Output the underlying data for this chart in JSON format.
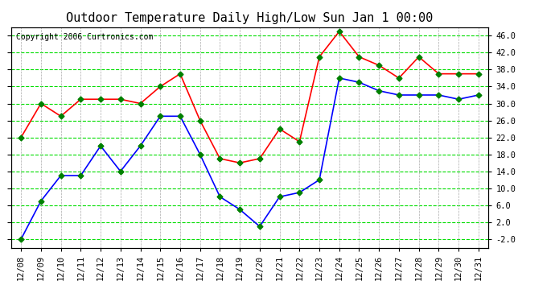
{
  "title": "Outdoor Temperature Daily High/Low Sun Jan 1 00:00",
  "copyright": "Copyright 2006 Curtronics.com",
  "x_labels": [
    "12/08",
    "12/09",
    "12/10",
    "12/11",
    "12/12",
    "12/13",
    "12/14",
    "12/15",
    "12/16",
    "12/17",
    "12/18",
    "12/19",
    "12/20",
    "12/21",
    "12/22",
    "12/23",
    "12/24",
    "12/25",
    "12/26",
    "12/27",
    "12/28",
    "12/29",
    "12/30",
    "12/31"
  ],
  "high_temps": [
    22,
    30,
    27,
    31,
    31,
    31,
    30,
    34,
    37,
    26,
    17,
    16,
    17,
    24,
    21,
    41,
    47,
    41,
    39,
    36,
    41,
    37,
    37,
    37
  ],
  "low_temps": [
    -2,
    7,
    13,
    13,
    20,
    14,
    20,
    27,
    27,
    18,
    8,
    5,
    1,
    8,
    9,
    12,
    36,
    35,
    33,
    32,
    32,
    32,
    31,
    32
  ],
  "high_color": "#ff0000",
  "low_color": "#0000ff",
  "marker_color": "#008000",
  "bg_color": "#ffffff",
  "plot_bg_color": "#ffffff",
  "grid_color": "#00dd00",
  "vgrid_color": "#aaaaaa",
  "ylim": [
    -4.0,
    48.0
  ],
  "yticks": [
    -2.0,
    2.0,
    6.0,
    10.0,
    14.0,
    18.0,
    22.0,
    26.0,
    30.0,
    34.0,
    38.0,
    42.0,
    46.0
  ],
  "ytick_labels": [
    "-2.0",
    "2.0",
    "6.0",
    "10.0",
    "14.0",
    "18.0",
    "22.0",
    "26.0",
    "30.0",
    "34.0",
    "38.0",
    "42.0",
    "46.0"
  ],
  "figsize": [
    6.9,
    3.75
  ],
  "dpi": 100,
  "title_fontsize": 11,
  "tick_fontsize": 7.5,
  "copyright_fontsize": 7
}
